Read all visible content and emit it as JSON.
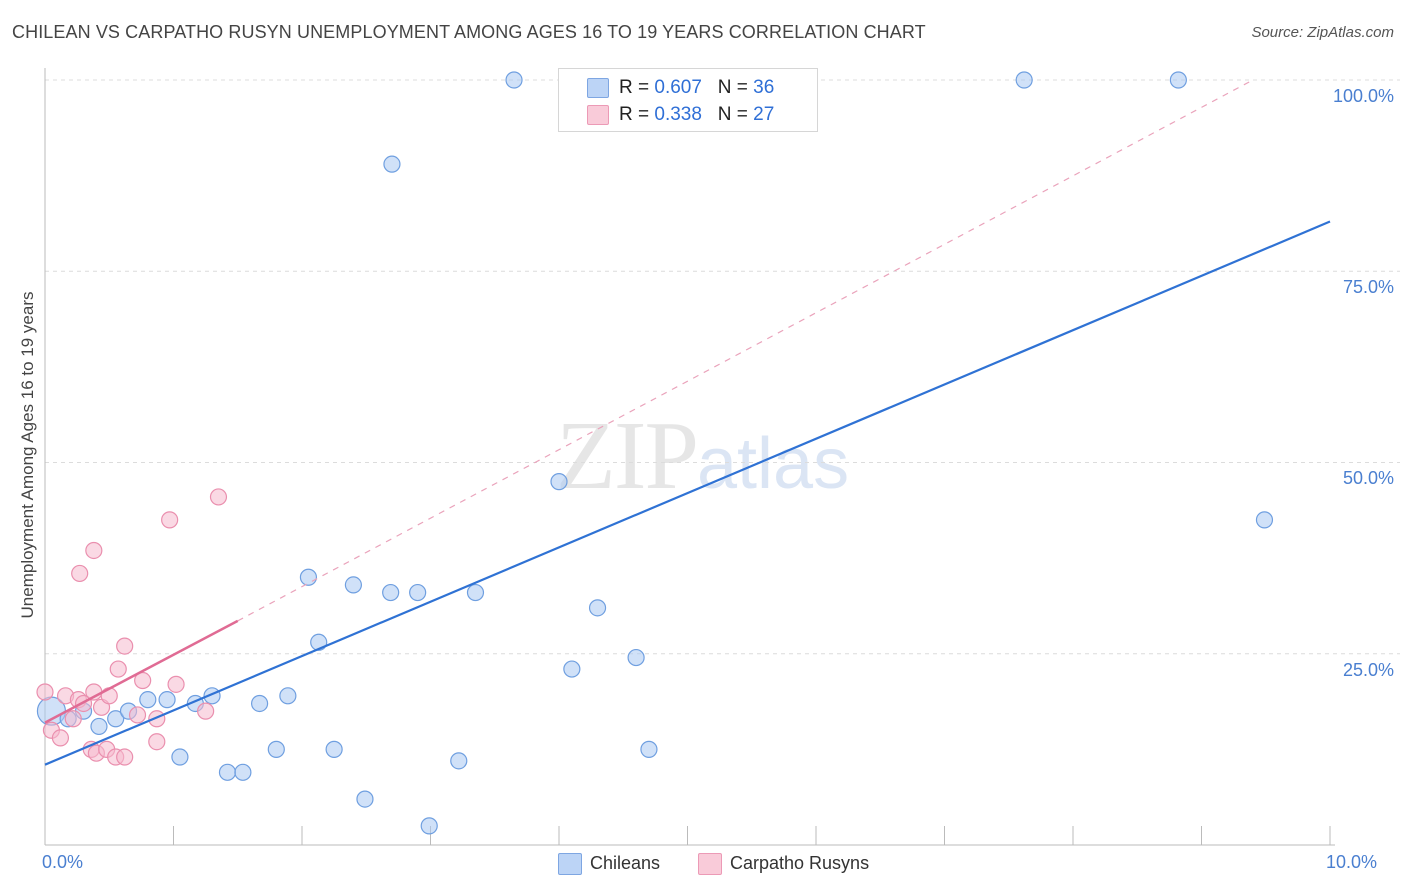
{
  "header": {
    "title": "CHILEAN VS CARPATHO RUSYN UNEMPLOYMENT AMONG AGES 16 TO 19 YEARS CORRELATION CHART",
    "source": "Source: ZipAtlas.com"
  },
  "watermark": {
    "zip": "ZIP",
    "atlas": "atlas"
  },
  "legend": {
    "r_label": "R =",
    "n_label": "N =",
    "rows": [
      {
        "name": "Chileans",
        "r": "0.607",
        "n": "36",
        "color": "#a9c8f3"
      },
      {
        "name": "Carpatho Rusyns",
        "r": "0.338",
        "n": "27",
        "color": "#f6b9cd"
      }
    ]
  },
  "bottom_legend": {
    "items": [
      "Chileans",
      "Carpatho Rusyns"
    ]
  },
  "chart_data": {
    "type": "scatter",
    "title": "CHILEAN VS CARPATHO RUSYN UNEMPLOYMENT AMONG AGES 16 TO 19 YEARS CORRELATION CHART",
    "xlabel": "",
    "ylabel": "Unemployment Among Ages 16 to 19 years",
    "xlim": [
      0,
      10
    ],
    "ylim": [
      0,
      100
    ],
    "x_tick_labels": [
      {
        "value": 0,
        "label": "0.0%"
      },
      {
        "value": 10,
        "label": "10.0%"
      }
    ],
    "x_minor_ticks": [
      0,
      1,
      2,
      3,
      4,
      5,
      6,
      7,
      8,
      9,
      10
    ],
    "y_tick_labels": [
      {
        "value": 25,
        "label": "25.0%"
      },
      {
        "value": 50,
        "label": "50.0%"
      },
      {
        "value": 75,
        "label": "75.0%"
      },
      {
        "value": 100,
        "label": "100.0%"
      }
    ],
    "grid": true,
    "series": [
      {
        "name": "Chileans",
        "color": "#a9c8f3",
        "stroke": "#6f9fe0",
        "points": [
          {
            "x": 0.05,
            "y": 17.5,
            "big": true
          },
          {
            "x": 0.18,
            "y": 16.5
          },
          {
            "x": 0.3,
            "y": 17.5
          },
          {
            "x": 0.42,
            "y": 15.5
          },
          {
            "x": 0.55,
            "y": 16.5
          },
          {
            "x": 0.65,
            "y": 17.5
          },
          {
            "x": 0.8,
            "y": 19
          },
          {
            "x": 0.95,
            "y": 19
          },
          {
            "x": 1.05,
            "y": 11.5
          },
          {
            "x": 1.17,
            "y": 18.5
          },
          {
            "x": 1.3,
            "y": 19.5
          },
          {
            "x": 1.42,
            "y": 9.5
          },
          {
            "x": 1.54,
            "y": 9.5
          },
          {
            "x": 1.67,
            "y": 18.5
          },
          {
            "x": 1.8,
            "y": 12.5
          },
          {
            "x": 1.89,
            "y": 19.5
          },
          {
            "x": 2.05,
            "y": 35
          },
          {
            "x": 2.13,
            "y": 26.5
          },
          {
            "x": 2.25,
            "y": 12.5
          },
          {
            "x": 2.4,
            "y": 34
          },
          {
            "x": 2.49,
            "y": 6
          },
          {
            "x": 2.69,
            "y": 33
          },
          {
            "x": 2.7,
            "y": 89
          },
          {
            "x": 2.9,
            "y": 33
          },
          {
            "x": 2.99,
            "y": 2.5
          },
          {
            "x": 3.22,
            "y": 11
          },
          {
            "x": 3.35,
            "y": 33
          },
          {
            "x": 3.65,
            "y": 100
          },
          {
            "x": 4.0,
            "y": 47.5
          },
          {
            "x": 4.1,
            "y": 23
          },
          {
            "x": 4.3,
            "y": 31
          },
          {
            "x": 4.6,
            "y": 24.5
          },
          {
            "x": 4.7,
            "y": 12.5
          },
          {
            "x": 7.62,
            "y": 100
          },
          {
            "x": 8.82,
            "y": 100
          },
          {
            "x": 9.49,
            "y": 42.5
          }
        ],
        "trend": {
          "x0": 0,
          "y0": 10.5,
          "x1": 10,
          "y1": 81.5
        }
      },
      {
        "name": "Carpatho Rusyns",
        "color": "#f6b9cd",
        "stroke": "#ea8fae",
        "points": [
          {
            "x": 0.0,
            "y": 20
          },
          {
            "x": 0.05,
            "y": 15
          },
          {
            "x": 0.12,
            "y": 14
          },
          {
            "x": 0.16,
            "y": 19.5
          },
          {
            "x": 0.22,
            "y": 16.5
          },
          {
            "x": 0.26,
            "y": 19
          },
          {
            "x": 0.27,
            "y": 35.5
          },
          {
            "x": 0.3,
            "y": 18.5
          },
          {
            "x": 0.36,
            "y": 12.5
          },
          {
            "x": 0.38,
            "y": 20
          },
          {
            "x": 0.38,
            "y": 38.5
          },
          {
            "x": 0.4,
            "y": 12
          },
          {
            "x": 0.44,
            "y": 18
          },
          {
            "x": 0.48,
            "y": 12.5
          },
          {
            "x": 0.5,
            "y": 19.5
          },
          {
            "x": 0.55,
            "y": 11.5
          },
          {
            "x": 0.57,
            "y": 23
          },
          {
            "x": 0.62,
            "y": 26
          },
          {
            "x": 0.62,
            "y": 11.5
          },
          {
            "x": 0.72,
            "y": 17
          },
          {
            "x": 0.76,
            "y": 21.5
          },
          {
            "x": 0.87,
            "y": 13.5
          },
          {
            "x": 0.87,
            "y": 16.5
          },
          {
            "x": 0.97,
            "y": 42.5
          },
          {
            "x": 1.02,
            "y": 21
          },
          {
            "x": 1.25,
            "y": 17.5
          },
          {
            "x": 1.35,
            "y": 45.5
          }
        ],
        "trend": {
          "x0": 0,
          "y0": 16,
          "x1": 1.5,
          "y1": 29.3
        },
        "trend_dashed": {
          "x0": 1.5,
          "y0": 29.3,
          "x1": 9.4,
          "y1": 100
        }
      }
    ]
  }
}
